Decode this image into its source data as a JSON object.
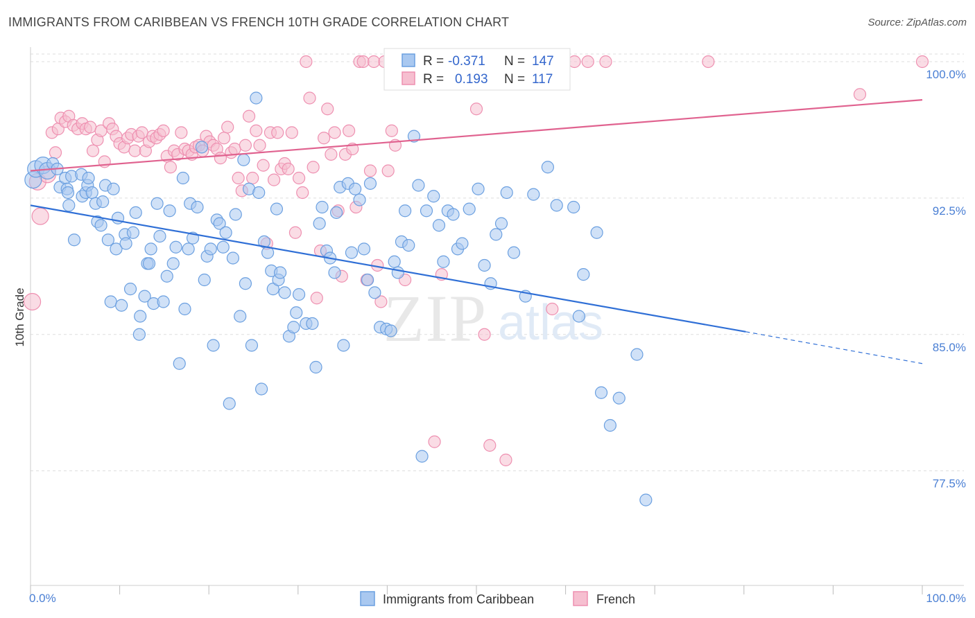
{
  "title": "IMMIGRANTS FROM CARIBBEAN VS FRENCH 10TH GRADE CORRELATION CHART",
  "source": "Source: ZipAtlas.com",
  "watermark": {
    "zip": "ZIP",
    "atlas": "atlas"
  },
  "legend_stats": [
    {
      "r_label": "R =",
      "r_value": "-0.371",
      "n_label": "N =",
      "n_value": "147"
    },
    {
      "r_label": "R =",
      "r_value": "0.193",
      "n_label": "N =",
      "n_value": "117"
    }
  ],
  "colors": {
    "blue_fill": "#a9c8f0",
    "blue_stroke": "#6a9fe0",
    "blue_line": "#2f6fd6",
    "pink_fill": "#f6bfd0",
    "pink_stroke": "#ee8fb0",
    "pink_line": "#e0628f",
    "grid": "#dddddd",
    "tick_label": "#4a7fd4"
  },
  "chart_data": {
    "type": "scatter",
    "title": "IMMIGRANTS FROM CARIBBEAN VS FRENCH 10TH GRADE CORRELATION CHART",
    "xlabel": "",
    "ylabel": "10th Grade",
    "xlim": [
      0,
      100
    ],
    "ylim": [
      71.2,
      100.8
    ],
    "x_tick_labels": [
      "0.0%",
      "100.0%"
    ],
    "y_ticks": [
      77.5,
      85.0,
      92.5,
      100.0
    ],
    "y_tick_labels": [
      "77.5%",
      "85.0%",
      "92.5%",
      "100.0%"
    ],
    "grid": true,
    "legend_position": "top-center and bottom",
    "series": [
      {
        "name": "Immigrants from Caribbean",
        "r": -0.371,
        "n": 147,
        "trend": {
          "x": [
            0,
            80.2
          ],
          "y": [
            92.1,
            85.15
          ],
          "dashed_to": [
            100,
            83.4
          ]
        },
        "points": [
          [
            0.3,
            93.5
          ],
          [
            0.6,
            94.1
          ],
          [
            1.4,
            94.3
          ],
          [
            1.9,
            94.0
          ],
          [
            2.5,
            94.4
          ],
          [
            3.0,
            94.1
          ],
          [
            3.3,
            93.1
          ],
          [
            3.9,
            93.6
          ],
          [
            4.1,
            93.0
          ],
          [
            4.2,
            92.8
          ],
          [
            4.3,
            92.1
          ],
          [
            4.6,
            93.7
          ],
          [
            4.9,
            90.2
          ],
          [
            5.7,
            93.8
          ],
          [
            5.8,
            92.6
          ],
          [
            6.2,
            92.8
          ],
          [
            6.4,
            93.2
          ],
          [
            6.5,
            93.6
          ],
          [
            6.9,
            92.8
          ],
          [
            7.3,
            92.2
          ],
          [
            7.5,
            91.2
          ],
          [
            7.9,
            91.0
          ],
          [
            8.1,
            92.3
          ],
          [
            8.4,
            93.2
          ],
          [
            8.7,
            90.2
          ],
          [
            9.0,
            86.8
          ],
          [
            9.3,
            93.0
          ],
          [
            9.6,
            89.7
          ],
          [
            9.8,
            91.4
          ],
          [
            10.2,
            86.6
          ],
          [
            10.6,
            90.5
          ],
          [
            10.7,
            90.0
          ],
          [
            11.2,
            87.5
          ],
          [
            11.5,
            90.6
          ],
          [
            11.8,
            91.7
          ],
          [
            12.2,
            85.0
          ],
          [
            12.3,
            86.0
          ],
          [
            12.8,
            87.1
          ],
          [
            13.1,
            88.9
          ],
          [
            13.3,
            88.9
          ],
          [
            13.5,
            89.7
          ],
          [
            13.8,
            86.7
          ],
          [
            14.2,
            92.2
          ],
          [
            14.5,
            90.4
          ],
          [
            14.9,
            86.8
          ],
          [
            15.3,
            88.2
          ],
          [
            15.6,
            91.8
          ],
          [
            16.0,
            88.9
          ],
          [
            16.3,
            89.8
          ],
          [
            16.7,
            83.4
          ],
          [
            17.1,
            93.6
          ],
          [
            17.3,
            86.4
          ],
          [
            17.7,
            89.7
          ],
          [
            17.9,
            92.2
          ],
          [
            18.2,
            90.3
          ],
          [
            18.7,
            92.0
          ],
          [
            19.2,
            95.3
          ],
          [
            19.5,
            88.0
          ],
          [
            19.8,
            89.3
          ],
          [
            20.2,
            89.7
          ],
          [
            20.5,
            84.4
          ],
          [
            20.9,
            91.3
          ],
          [
            21.2,
            91.1
          ],
          [
            21.6,
            89.8
          ],
          [
            21.9,
            90.6
          ],
          [
            22.3,
            81.2
          ],
          [
            22.7,
            89.2
          ],
          [
            23.0,
            91.6
          ],
          [
            23.5,
            86.0
          ],
          [
            23.9,
            94.6
          ],
          [
            24.1,
            87.8
          ],
          [
            24.5,
            93.0
          ],
          [
            24.8,
            84.4
          ],
          [
            25.3,
            98.0
          ],
          [
            25.6,
            92.8
          ],
          [
            25.9,
            82.0
          ],
          [
            26.2,
            90.1
          ],
          [
            26.6,
            89.5
          ],
          [
            27.0,
            88.5
          ],
          [
            27.2,
            87.5
          ],
          [
            27.6,
            91.9
          ],
          [
            27.8,
            88.0
          ],
          [
            28.0,
            88.4
          ],
          [
            28.5,
            87.3
          ],
          [
            29.0,
            84.9
          ],
          [
            29.5,
            85.4
          ],
          [
            29.8,
            86.2
          ],
          [
            30.1,
            87.2
          ],
          [
            30.9,
            85.6
          ],
          [
            31.6,
            85.6
          ],
          [
            32.0,
            83.2
          ],
          [
            32.4,
            91.1
          ],
          [
            32.7,
            92.0
          ],
          [
            33.2,
            89.6
          ],
          [
            33.6,
            89.2
          ],
          [
            34.1,
            88.4
          ],
          [
            34.3,
            91.7
          ],
          [
            34.7,
            93.1
          ],
          [
            35.1,
            84.4
          ],
          [
            35.6,
            93.3
          ],
          [
            36.0,
            89.5
          ],
          [
            36.4,
            93.0
          ],
          [
            36.9,
            92.4
          ],
          [
            37.4,
            89.7
          ],
          [
            37.8,
            88.0
          ],
          [
            38.1,
            93.3
          ],
          [
            38.6,
            87.3
          ],
          [
            39.2,
            85.4
          ],
          [
            39.9,
            85.3
          ],
          [
            40.4,
            85.2
          ],
          [
            40.8,
            89.0
          ],
          [
            41.2,
            88.4
          ],
          [
            41.6,
            90.1
          ],
          [
            42.0,
            91.8
          ],
          [
            42.4,
            89.9
          ],
          [
            43.0,
            95.9
          ],
          [
            43.5,
            93.2
          ],
          [
            43.9,
            78.3
          ],
          [
            44.4,
            91.8
          ],
          [
            45.2,
            92.6
          ],
          [
            45.8,
            91.0
          ],
          [
            46.3,
            89.0
          ],
          [
            46.8,
            91.8
          ],
          [
            47.4,
            91.6
          ],
          [
            47.9,
            89.7
          ],
          [
            48.4,
            90.0
          ],
          [
            49.2,
            91.9
          ],
          [
            50.2,
            93.0
          ],
          [
            50.9,
            88.8
          ],
          [
            51.6,
            87.8
          ],
          [
            52.2,
            90.5
          ],
          [
            52.8,
            91.1
          ],
          [
            53.4,
            92.8
          ],
          [
            54.2,
            89.5
          ],
          [
            55.5,
            87.1
          ],
          [
            56.4,
            92.7
          ],
          [
            58.0,
            94.2
          ],
          [
            59.0,
            92.1
          ],
          [
            60.9,
            92.0
          ],
          [
            61.5,
            86.0
          ],
          [
            62.0,
            88.3
          ],
          [
            63.5,
            90.6
          ],
          [
            64.0,
            81.8
          ],
          [
            65.0,
            80.0
          ],
          [
            66.0,
            81.5
          ],
          [
            68.0,
            83.9
          ],
          [
            69.0,
            75.9
          ]
        ]
      },
      {
        "name": "French",
        "r": 0.193,
        "n": 117,
        "trend": {
          "x": [
            0,
            100
          ],
          "y": [
            94.0,
            97.9
          ]
        },
        "points": [
          [
            0.2,
            86.8
          ],
          [
            0.8,
            93.4
          ],
          [
            1.1,
            91.5
          ],
          [
            1.9,
            93.8
          ],
          [
            2.4,
            96.1
          ],
          [
            2.8,
            95.0
          ],
          [
            3.1,
            96.3
          ],
          [
            3.4,
            96.9
          ],
          [
            3.9,
            96.7
          ],
          [
            4.3,
            97.0
          ],
          [
            4.8,
            96.5
          ],
          [
            5.3,
            96.3
          ],
          [
            5.8,
            96.6
          ],
          [
            6.2,
            96.3
          ],
          [
            6.7,
            96.4
          ],
          [
            7.0,
            95.1
          ],
          [
            7.5,
            95.7
          ],
          [
            7.9,
            96.2
          ],
          [
            8.3,
            94.5
          ],
          [
            8.8,
            96.6
          ],
          [
            9.2,
            96.3
          ],
          [
            9.6,
            95.9
          ],
          [
            10.0,
            95.5
          ],
          [
            10.5,
            95.3
          ],
          [
            10.9,
            95.8
          ],
          [
            11.3,
            96.0
          ],
          [
            11.7,
            95.1
          ],
          [
            12.1,
            95.9
          ],
          [
            12.5,
            96.1
          ],
          [
            12.9,
            95.1
          ],
          [
            13.3,
            95.6
          ],
          [
            13.7,
            95.9
          ],
          [
            14.1,
            95.8
          ],
          [
            14.5,
            96.0
          ],
          [
            14.9,
            96.2
          ],
          [
            15.3,
            94.8
          ],
          [
            15.7,
            94.2
          ],
          [
            16.1,
            95.1
          ],
          [
            16.5,
            94.9
          ],
          [
            16.9,
            96.1
          ],
          [
            17.3,
            95.2
          ],
          [
            17.7,
            95.1
          ],
          [
            18.1,
            94.9
          ],
          [
            18.5,
            95.3
          ],
          [
            18.9,
            95.4
          ],
          [
            19.3,
            95.1
          ],
          [
            19.7,
            95.9
          ],
          [
            20.1,
            95.6
          ],
          [
            20.5,
            95.4
          ],
          [
            20.9,
            95.2
          ],
          [
            21.3,
            94.7
          ],
          [
            21.7,
            95.8
          ],
          [
            22.1,
            96.4
          ],
          [
            22.5,
            95.0
          ],
          [
            22.9,
            95.2
          ],
          [
            23.3,
            93.6
          ],
          [
            23.7,
            92.9
          ],
          [
            24.1,
            95.4
          ],
          [
            24.5,
            97.0
          ],
          [
            24.9,
            93.6
          ],
          [
            25.3,
            96.2
          ],
          [
            25.7,
            95.4
          ],
          [
            26.1,
            94.3
          ],
          [
            26.5,
            90.0
          ],
          [
            26.9,
            96.1
          ],
          [
            27.3,
            93.5
          ],
          [
            27.7,
            96.1
          ],
          [
            28.1,
            94.1
          ],
          [
            28.5,
            94.4
          ],
          [
            28.9,
            94.1
          ],
          [
            29.3,
            96.1
          ],
          [
            29.7,
            90.6
          ],
          [
            30.1,
            93.6
          ],
          [
            30.5,
            92.8
          ],
          [
            30.9,
            100.0
          ],
          [
            31.3,
            98.0
          ],
          [
            31.7,
            94.2
          ],
          [
            32.1,
            87.0
          ],
          [
            32.5,
            89.6
          ],
          [
            32.9,
            95.8
          ],
          [
            33.3,
            97.4
          ],
          [
            33.7,
            94.9
          ],
          [
            34.1,
            96.1
          ],
          [
            34.5,
            91.8
          ],
          [
            34.9,
            88.2
          ],
          [
            35.3,
            94.9
          ],
          [
            35.7,
            96.2
          ],
          [
            36.1,
            95.2
          ],
          [
            36.5,
            92.0
          ],
          [
            36.9,
            100.0
          ],
          [
            37.3,
            100.0
          ],
          [
            37.7,
            88.0
          ],
          [
            38.1,
            94.0
          ],
          [
            38.5,
            100.0
          ],
          [
            38.9,
            88.8
          ],
          [
            39.3,
            86.8
          ],
          [
            39.7,
            100.0
          ],
          [
            40.1,
            94.0
          ],
          [
            40.5,
            96.2
          ],
          [
            40.9,
            95.4
          ],
          [
            41.3,
            100.0
          ],
          [
            42.0,
            88.0
          ],
          [
            43.4,
            100.0
          ],
          [
            44.5,
            100.0
          ],
          [
            45.3,
            79.1
          ],
          [
            46.1,
            88.3
          ],
          [
            46.8,
            100.0
          ],
          [
            47.8,
            100.0
          ],
          [
            48.5,
            100.0
          ],
          [
            50.0,
            97.4
          ],
          [
            50.9,
            85.0
          ],
          [
            51.5,
            78.9
          ],
          [
            52.4,
            100.0
          ],
          [
            53.3,
            78.1
          ],
          [
            56.0,
            100.0
          ],
          [
            58.5,
            86.4
          ],
          [
            61.0,
            100.0
          ],
          [
            62.5,
            100.0
          ],
          [
            64.5,
            100.0
          ],
          [
            76.0,
            100.0
          ],
          [
            93.0,
            98.2
          ],
          [
            100.0,
            100.0
          ]
        ]
      }
    ]
  },
  "bottom_legend": [
    "Immigrants from Caribbean",
    "French"
  ]
}
